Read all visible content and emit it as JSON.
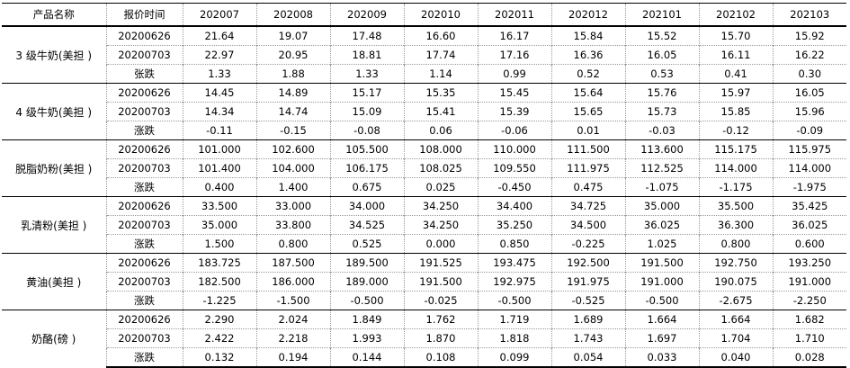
{
  "headers": [
    "产品名称",
    "报价时间",
    "202007",
    "202008",
    "202009",
    "202010",
    "202011",
    "202012",
    "202101",
    "202102",
    "202103"
  ],
  "rows": [
    {
      "product": "3 级牛奶(美担 )",
      "date": "20200626",
      "cells": [
        "21.64",
        "19.07",
        "17.48",
        "16.60",
        "16.17",
        "15.84",
        "15.52",
        "15.70",
        "15.92"
      ]
    },
    {
      "product": "",
      "date": "20200703",
      "cells": [
        "22.97",
        "20.95",
        "18.81",
        "17.74",
        "17.16",
        "16.36",
        "16.05",
        "16.11",
        "16.22"
      ]
    },
    {
      "product": "",
      "date": "张跌",
      "cells": [
        "1.33",
        "1.88",
        "1.33",
        "1.14",
        "0.99",
        "0.52",
        "0.53",
        "0.41",
        "0.30"
      ]
    },
    {
      "product": "4 级牛奶(美担 )",
      "date": "20200626",
      "cells": [
        "14.45",
        "14.89",
        "15.17",
        "15.35",
        "15.45",
        "15.64",
        "15.76",
        "15.97",
        "16.05"
      ]
    },
    {
      "product": "",
      "date": "20200703",
      "cells": [
        "14.34",
        "14.74",
        "15.09",
        "15.41",
        "15.39",
        "15.65",
        "15.73",
        "15.85",
        "15.96"
      ]
    },
    {
      "product": "",
      "date": "涨跌",
      "cells": [
        "-0.11",
        "-0.15",
        "-0.08",
        "0.06",
        "-0.06",
        "0.01",
        "-0.03",
        "-0.12",
        "-0.09"
      ]
    },
    {
      "product": "脱脂奶粉(美担 )",
      "date": "20200626",
      "cells": [
        "101.000",
        "102.600",
        "105.500",
        "108.000",
        "110.000",
        "111.500",
        "113.600",
        "115.175",
        "115.975"
      ]
    },
    {
      "product": "",
      "date": "20200703",
      "cells": [
        "101.400",
        "104.000",
        "106.175",
        "108.025",
        "109.550",
        "111.975",
        "112.525",
        "114.000",
        "114.000"
      ]
    },
    {
      "product": "",
      "date": "涨跌",
      "cells": [
        "0.400",
        "1.400",
        "0.675",
        "0.025",
        "-0.450",
        "0.475",
        "-1.075",
        "-1.175",
        "-1.975"
      ]
    },
    {
      "product": "乳清粉(美担 )",
      "date": "20200626",
      "cells": [
        "33.500",
        "33.000",
        "34.000",
        "34.250",
        "34.400",
        "34.725",
        "35.000",
        "35.500",
        "35.425"
      ]
    },
    {
      "product": "",
      "date": "20200703",
      "cells": [
        "35.000",
        "33.800",
        "34.525",
        "34.250",
        "35.250",
        "34.500",
        "36.025",
        "36.300",
        "36.025"
      ]
    },
    {
      "product": "",
      "date": "涨跌",
      "cells": [
        "1.500",
        "0.800",
        "0.525",
        "0.000",
        "0.850",
        "-0.225",
        "1.025",
        "0.800",
        "0.600"
      ]
    },
    {
      "product": "黄油(美担 )",
      "date": "20200626",
      "cells": [
        "183.725",
        "187.500",
        "189.500",
        "191.525",
        "193.475",
        "192.500",
        "191.500",
        "192.750",
        "193.250"
      ]
    },
    {
      "product": "",
      "date": "20200703",
      "cells": [
        "182.500",
        "186.000",
        "189.000",
        "191.500",
        "192.975",
        "191.975",
        "191.000",
        "190.075",
        "191.000"
      ]
    },
    {
      "product": "",
      "date": "涨跌",
      "cells": [
        "-1.225",
        "-1.500",
        "-0.500",
        "-0.025",
        "-0.500",
        "-0.525",
        "-0.500",
        "-2.675",
        "-2.250"
      ]
    },
    {
      "product": "奶酪(磅 )",
      "date": "20200626",
      "cells": [
        "2.290",
        "2.024",
        "1.849",
        "1.762",
        "1.719",
        "1.689",
        "1.664",
        "1.664",
        "1.682"
      ]
    },
    {
      "product": "",
      "date": "20200703",
      "cells": [
        "2.422",
        "2.218",
        "1.993",
        "1.870",
        "1.818",
        "1.743",
        "1.697",
        "1.704",
        "1.710"
      ]
    },
    {
      "product": "",
      "date": "涨跌",
      "cells": [
        "0.132",
        "0.194",
        "0.144",
        "0.108",
        "0.099",
        "0.054",
        "0.033",
        "0.040",
        "0.028"
      ]
    }
  ]
}
